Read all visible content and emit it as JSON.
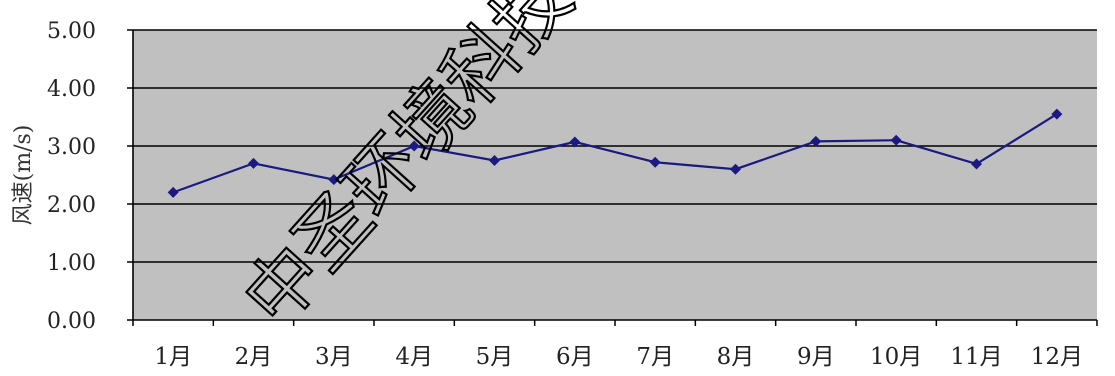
{
  "chart_data": {
    "type": "line",
    "categories": [
      "1月",
      "2月",
      "3月",
      "4月",
      "5月",
      "6月",
      "7月",
      "8月",
      "9月",
      "10月",
      "11月",
      "12月"
    ],
    "series": [
      {
        "values": [
          2.2,
          2.7,
          2.42,
          3.0,
          2.75,
          3.07,
          2.72,
          2.6,
          3.08,
          3.1,
          2.69,
          3.55
        ]
      }
    ],
    "yticks": [
      "0.00",
      "1.00",
      "2.00",
      "3.00",
      "4.00",
      "5.00"
    ],
    "ylim": [
      0,
      5
    ],
    "ylabel": "风速(m/s)",
    "xlabel": "",
    "title": "",
    "grid": true,
    "plot_background": "#c0c0c0",
    "line_color": "#1a1a80",
    "marker": "diamond"
  },
  "watermark": {
    "text": "中圣环境科技发",
    "color": "#000000"
  }
}
